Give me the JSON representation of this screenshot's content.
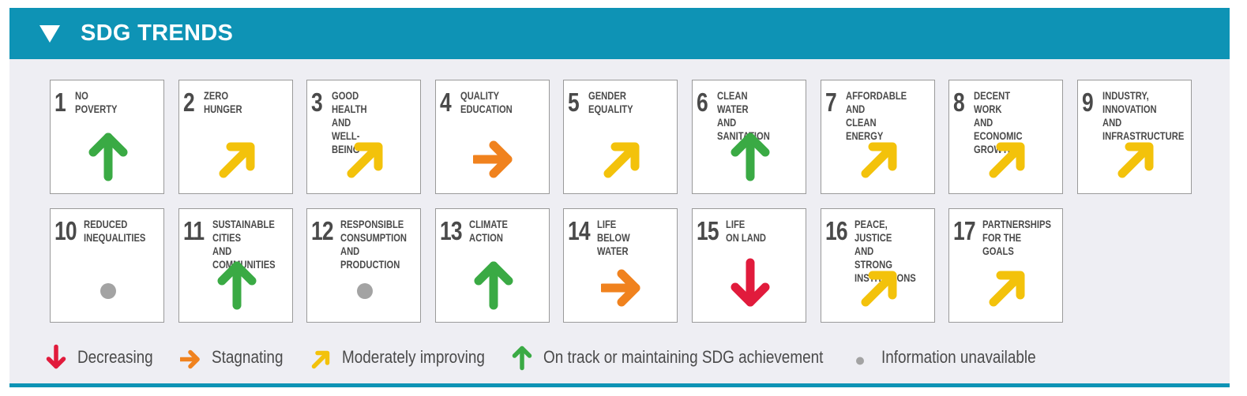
{
  "header": {
    "title": "SDG TRENDS"
  },
  "colors": {
    "header": "#0e93b5",
    "decreasing": "#e11b3c",
    "stagnating": "#f0821e",
    "moderately_improving": "#f3c20b",
    "on_track": "#3aaa44",
    "unavailable": "#a3a3a3"
  },
  "goals": [
    {
      "number": "1",
      "label": "No\nPoverty",
      "trend": "on_track"
    },
    {
      "number": "2",
      "label": "Zero\nHunger",
      "trend": "moderately_improving"
    },
    {
      "number": "3",
      "label": "Good Health\nand Well-Being",
      "trend": "moderately_improving"
    },
    {
      "number": "4",
      "label": "Quality\nEducation",
      "trend": "stagnating"
    },
    {
      "number": "5",
      "label": "Gender\nEquality",
      "trend": "moderately_improving"
    },
    {
      "number": "6",
      "label": "Clean Water\nand Sanitation",
      "trend": "on_track"
    },
    {
      "number": "7",
      "label": "Affordable and\nClean Energy",
      "trend": "moderately_improving"
    },
    {
      "number": "8",
      "label": "Decent Work and\nEconomic Growth",
      "trend": "moderately_improving"
    },
    {
      "number": "9",
      "label": "Industry, Innovation\nand Infrastructure",
      "trend": "moderately_improving"
    },
    {
      "number": "10",
      "label": "Reduced\nInequalities",
      "trend": "unavailable"
    },
    {
      "number": "11",
      "label": "Sustainable Cities\nand Communities",
      "trend": "on_track"
    },
    {
      "number": "12",
      "label": "Responsible\nConsumption\nand Production",
      "trend": "unavailable"
    },
    {
      "number": "13",
      "label": "Climate\nAction",
      "trend": "on_track"
    },
    {
      "number": "14",
      "label": "Life\nBelow Water",
      "trend": "stagnating"
    },
    {
      "number": "15",
      "label": "Life\non Land",
      "trend": "decreasing"
    },
    {
      "number": "16",
      "label": "Peace, Justice\nand Strong\nInstitutions",
      "trend": "moderately_improving"
    },
    {
      "number": "17",
      "label": "Partnerships\nfor the Goals",
      "trend": "moderately_improving"
    }
  ],
  "legend": [
    {
      "trend": "decreasing",
      "label": "Decreasing"
    },
    {
      "trend": "stagnating",
      "label": "Stagnating"
    },
    {
      "trend": "moderately_improving",
      "label": "Moderately improving"
    },
    {
      "trend": "on_track",
      "label": "On track or maintaining SDG achievement"
    },
    {
      "trend": "unavailable",
      "label": "Information unavailable"
    }
  ]
}
